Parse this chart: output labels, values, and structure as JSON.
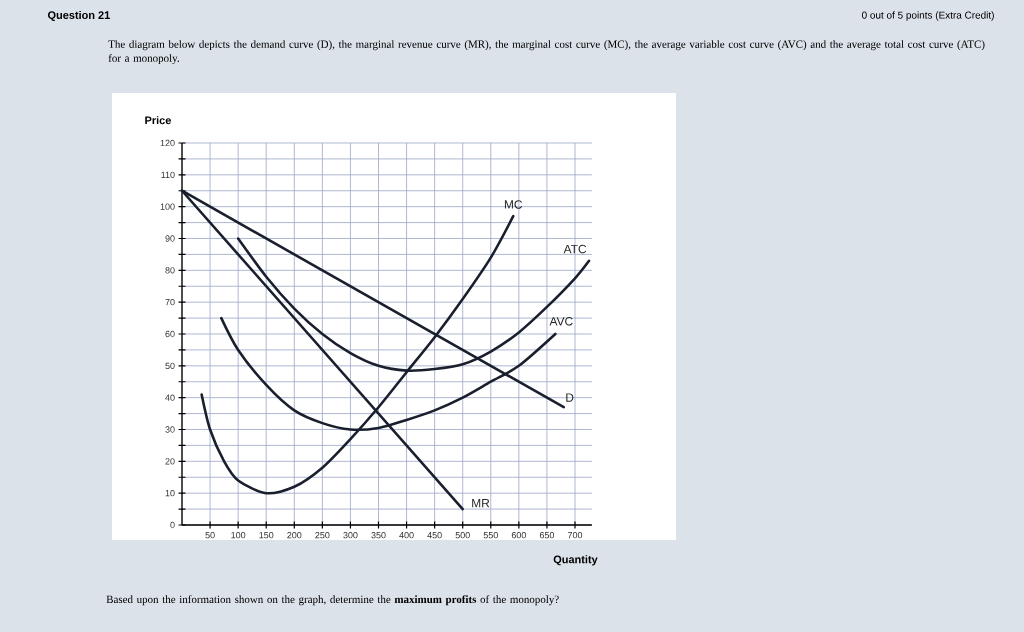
{
  "chart_data": {
    "type": "line",
    "title": "Question 21",
    "subtitle": "0 out of 5 points (Extra Credit)",
    "annotations": [
      "The diagram below depicts the demand curve (D), the marginal revenue curve (MR), the marginal cost curve (MC), the average variable cost curve (AVC) and the average total cost curve (ATC) for a monopoly.",
      "Based upon the information shown on the graph, determine the **maximum profits** of the monopoly?"
    ],
    "xlabel": "Quantity",
    "ylabel": "Price",
    "xlim": [
      0,
      730
    ],
    "ylim": [
      0,
      120
    ],
    "xticks": [
      50,
      100,
      150,
      200,
      250,
      300,
      350,
      400,
      450,
      500,
      550,
      600,
      650,
      700
    ],
    "yticks": [
      0,
      {
        "value": 5,
        "label": null
      },
      10,
      {
        "value": 15,
        "label": null
      },
      20,
      {
        "value": 25,
        "label": null
      },
      30,
      {
        "value": 35,
        "label": null
      },
      40,
      {
        "value": 45,
        "label": null
      },
      50,
      {
        "value": 55,
        "label": null
      },
      60,
      {
        "value": 65,
        "label": null
      },
      70,
      {
        "value": 75,
        "label": null
      },
      80,
      {
        "value": 85,
        "label": null
      },
      90,
      {
        "value": 95,
        "label": null
      },
      100,
      {
        "value": 105,
        "label": null
      },
      110,
      {
        "value": 115,
        "label": null
      },
      120
    ],
    "grid": true,
    "series": [
      {
        "name": "MC",
        "color": "#1a1f2e",
        "x": [
          35,
          50,
          75,
          100,
          150,
          200,
          250,
          300,
          350,
          400,
          450,
          500,
          550,
          590
        ],
        "values": [
          41,
          30,
          20,
          14,
          10,
          12,
          18,
          27,
          37,
          48,
          59,
          71,
          84,
          97
        ]
      },
      {
        "name": "ATC",
        "color": "#1a1f2e",
        "x": [
          100,
          150,
          200,
          250,
          300,
          350,
          400,
          450,
          500,
          550,
          600,
          650,
          700,
          725
        ],
        "values": [
          90,
          78,
          68,
          60,
          54,
          50,
          48.5,
          49,
          50.5,
          54.5,
          60.5,
          68.5,
          77.5,
          83
        ]
      },
      {
        "name": "AVC",
        "color": "#1a1f2e",
        "x": [
          70,
          100,
          150,
          200,
          250,
          300,
          350,
          400,
          450,
          500,
          550,
          600,
          665
        ],
        "values": [
          65,
          55,
          44,
          36,
          32,
          30,
          30.5,
          33,
          36,
          40,
          45,
          50,
          60
        ]
      },
      {
        "name": "D",
        "color": "#1a1f2e",
        "x": [
          0,
          680
        ],
        "values": [
          105,
          37
        ]
      },
      {
        "name": "MR",
        "color": "#1a1f2e",
        "x": [
          0,
          500
        ],
        "values": [
          105,
          5
        ]
      }
    ]
  }
}
